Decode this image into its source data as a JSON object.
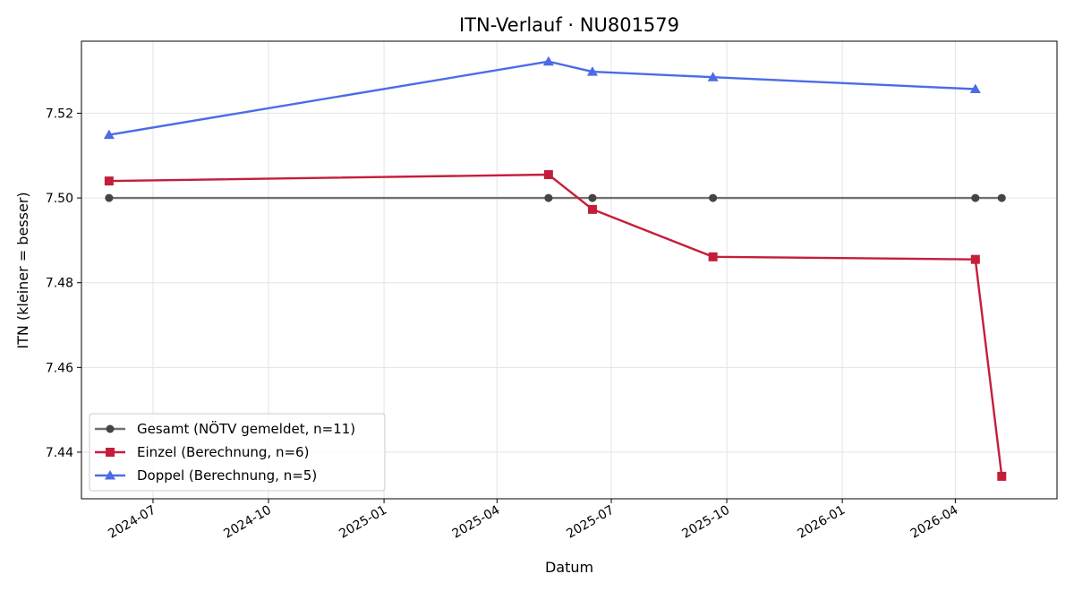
{
  "chart_data": {
    "type": "line",
    "title": "ITN-Verlauf · NU801579",
    "xlabel": "Datum",
    "ylabel": "ITN  (kleiner = besser)",
    "xlim": [
      "2024-05-05",
      "2026-06-21"
    ],
    "ylim": [
      7.429,
      7.537
    ],
    "x_ticks": [
      "2024-07-01",
      "2024-10-01",
      "2025-01-01",
      "2025-04-01",
      "2025-07-01",
      "2025-10-01",
      "2026-01-01",
      "2026-04-01"
    ],
    "x_tick_labels": [
      "2024-07",
      "2024-10",
      "2025-01",
      "2025-04",
      "2025-07",
      "2025-10",
      "2026-01",
      "2026-04"
    ],
    "y_ticks": [
      7.44,
      7.46,
      7.48,
      7.5,
      7.52
    ],
    "y_tick_labels": [
      "7.44",
      "7.46",
      "7.48",
      "7.50",
      "7.52"
    ],
    "grid": true,
    "legend_position": "lower-left",
    "series": [
      {
        "name": "Gesamt (NÖTV gemeldet, n=11)",
        "color": "#555555",
        "marker": "circle",
        "points": [
          {
            "x": "2024-05-27",
            "y": 7.5
          },
          {
            "x": "2025-05-12",
            "y": 7.5
          },
          {
            "x": "2025-06-16",
            "y": 7.5
          },
          {
            "x": "2025-09-20",
            "y": 7.5
          },
          {
            "x": "2026-04-17",
            "y": 7.5
          },
          {
            "x": "2026-05-08",
            "y": 7.5
          }
        ]
      },
      {
        "name": "Einzel (Berechnung, n=6)",
        "color": "#c41e3a",
        "marker": "square",
        "points": [
          {
            "x": "2024-05-27",
            "y": 7.504
          },
          {
            "x": "2025-05-12",
            "y": 7.5055
          },
          {
            "x": "2025-06-16",
            "y": 7.4973
          },
          {
            "x": "2025-09-20",
            "y": 7.4861
          },
          {
            "x": "2026-04-17",
            "y": 7.4855
          },
          {
            "x": "2026-05-08",
            "y": 7.4343
          }
        ]
      },
      {
        "name": "Doppel (Berechnung, n=5)",
        "color": "#4c6ce6",
        "marker": "triangle",
        "points": [
          {
            "x": "2024-05-27",
            "y": 7.5149
          },
          {
            "x": "2025-05-12",
            "y": 7.5322
          },
          {
            "x": "2025-06-16",
            "y": 7.5298
          },
          {
            "x": "2025-09-20",
            "y": 7.5285
          },
          {
            "x": "2026-04-17",
            "y": 7.5257
          }
        ]
      }
    ]
  }
}
